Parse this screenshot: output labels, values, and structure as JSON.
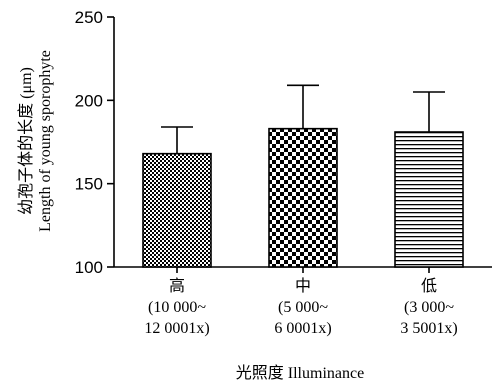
{
  "chart_data": {
    "type": "bar",
    "categories": [
      [
        "高",
        "(10 000~",
        "12 0001x)"
      ],
      [
        "中",
        "(5 000~",
        "6 0001x)"
      ],
      [
        "低",
        "(3 000~",
        "3 5001x)"
      ]
    ],
    "values": [
      168,
      183,
      181
    ],
    "errors": [
      16,
      26,
      24
    ],
    "patterns": [
      "checker-fine",
      "checker-coarse",
      "horizontal-lines"
    ],
    "xlabel": "光照度 Illuminance",
    "ylabel": [
      "幼孢子体的长度 (μm)",
      "Length of young sporophyte"
    ],
    "ylim": [
      100,
      250
    ],
    "yticks": [
      100,
      150,
      200,
      250
    ],
    "grid": false
  }
}
